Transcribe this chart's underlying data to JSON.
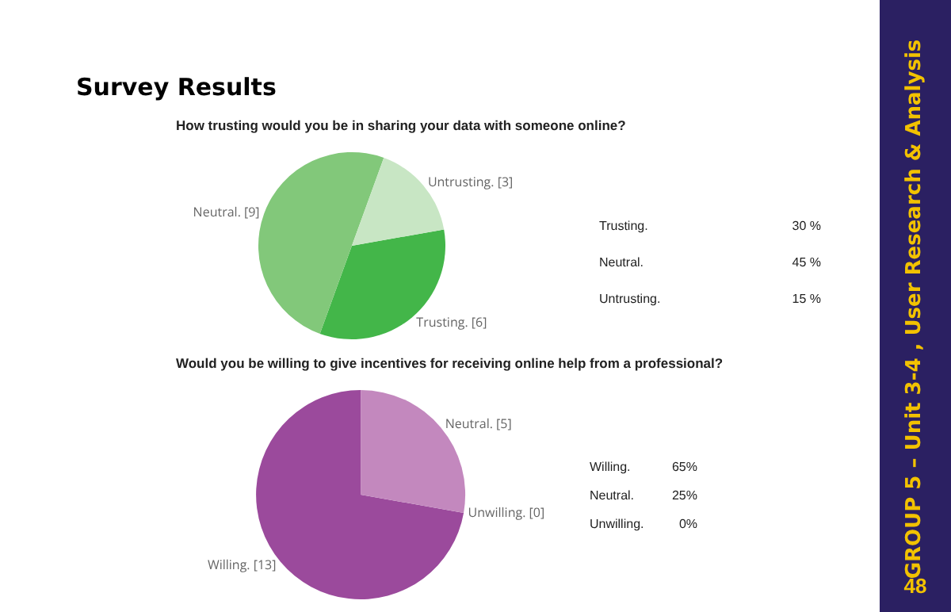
{
  "chart_data": [
    {
      "type": "other",
      "title": "Survey Results",
      "annotations": [
        "GROUP 5 – Unit 3-4 , User Research & Analysis",
        "48"
      ]
    },
    {
      "type": "pie",
      "title": "How trusting would you be in sharing your data with someone online?",
      "categories": [
        "Trusting. [6]",
        "Neutral. [9]",
        "Untrusting. [3]"
      ],
      "values": [
        6,
        9,
        3
      ],
      "colors": [
        "#43b649",
        "#82c87a",
        "#c8e6c4"
      ],
      "annotations": [
        "Trusting.",
        "30 %",
        "Neutral.",
        "45 %",
        "Untrusting.",
        "15 %"
      ]
    },
    {
      "type": "pie",
      "title": "Would you be willing to give incentives for receiving online help from a professional?",
      "categories": [
        "Willing. [13]",
        "Neutral. [5]",
        "Unwilling. [0]"
      ],
      "values": [
        13,
        5,
        0
      ],
      "colors": [
        "#9b4a9c",
        "#c388be",
        "#e3c4e1"
      ],
      "annotations": [
        "Willing.",
        "65%",
        "Neutral.",
        "25%",
        "Unwilling.",
        "0%"
      ]
    }
  ]
}
